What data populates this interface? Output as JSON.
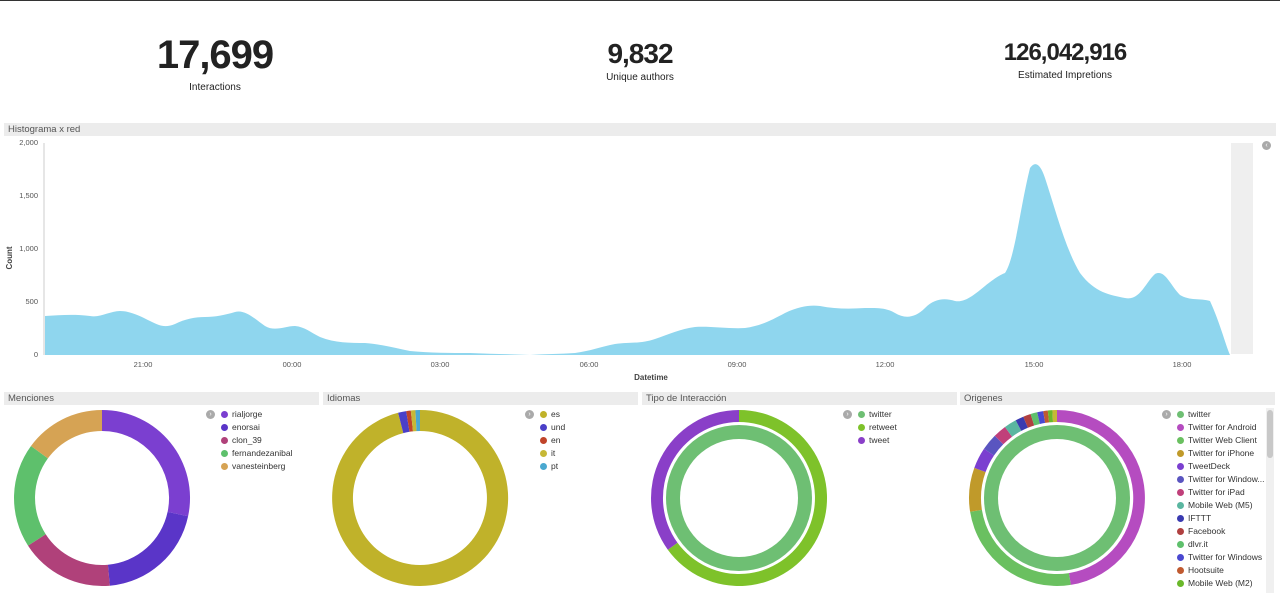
{
  "metrics": [
    {
      "value": "17,699",
      "label": "Interactions"
    },
    {
      "value": "9,832",
      "label": "Unique authors"
    },
    {
      "value": "126,042,916",
      "label": "Estimated Impretions"
    }
  ],
  "histogram": {
    "title": "Histograma x red",
    "chart_data": {
      "type": "area",
      "ylabel": "Count",
      "xlabel": "Datetime",
      "ylim": [
        0,
        2000
      ],
      "yticks": [
        "0",
        "500",
        "1,000",
        "1,500",
        "2,000"
      ],
      "xticks": [
        "21:00",
        "00:00",
        "03:00",
        "06:00",
        "09:00",
        "12:00",
        "15:00",
        "18:00"
      ],
      "color": "#8fd6ee"
    }
  },
  "donuts": [
    {
      "title": "Menciones",
      "legend": [
        {
          "label": "rialjorge",
          "color": "#7b3fd0"
        },
        {
          "label": "enorsai",
          "color": "#5a35c8"
        },
        {
          "label": "clon_39",
          "color": "#b0417a"
        },
        {
          "label": "fernandezanibal",
          "color": "#5ec06c"
        },
        {
          "label": "vanesteinberg",
          "color": "#d6a354"
        }
      ]
    },
    {
      "title": "Idiomas",
      "legend": [
        {
          "label": "es",
          "color": "#c0b22a"
        },
        {
          "label": "und",
          "color": "#4a3fc8"
        },
        {
          "label": "en",
          "color": "#c0442a"
        },
        {
          "label": "it",
          "color": "#c6b836"
        },
        {
          "label": "pt",
          "color": "#4aa8d0"
        }
      ]
    },
    {
      "title": "Tipo de Interacción",
      "legend": [
        {
          "label": "twitter",
          "color": "#6ebf73"
        },
        {
          "label": "retweet",
          "color": "#7ec22a"
        },
        {
          "label": "tweet",
          "color": "#8a3fc8"
        }
      ]
    },
    {
      "title": "Origenes",
      "legend": [
        {
          "label": "twitter",
          "color": "#6ebf73"
        },
        {
          "label": "Twitter for Android",
          "color": "#b54cc0"
        },
        {
          "label": "Twitter Web Client",
          "color": "#6ac060"
        },
        {
          "label": "Twitter for iPhone",
          "color": "#c09a2a"
        },
        {
          "label": "TweetDeck",
          "color": "#7b3fd0"
        },
        {
          "label": "Twitter for Window...",
          "color": "#5a55c0"
        },
        {
          "label": "Twitter for iPad",
          "color": "#c0407a"
        },
        {
          "label": "Mobile Web (M5)",
          "color": "#5ab6a0"
        },
        {
          "label": "IFTTT",
          "color": "#3a3ab0"
        },
        {
          "label": "Facebook",
          "color": "#b04040"
        },
        {
          "label": "dlvr.it",
          "color": "#5ec06c"
        },
        {
          "label": "Twitter for Windows",
          "color": "#4a48d0"
        },
        {
          "label": "Hootsuite",
          "color": "#c05a30"
        },
        {
          "label": "Mobile Web (M2)",
          "color": "#6ab82a"
        }
      ]
    }
  ]
}
